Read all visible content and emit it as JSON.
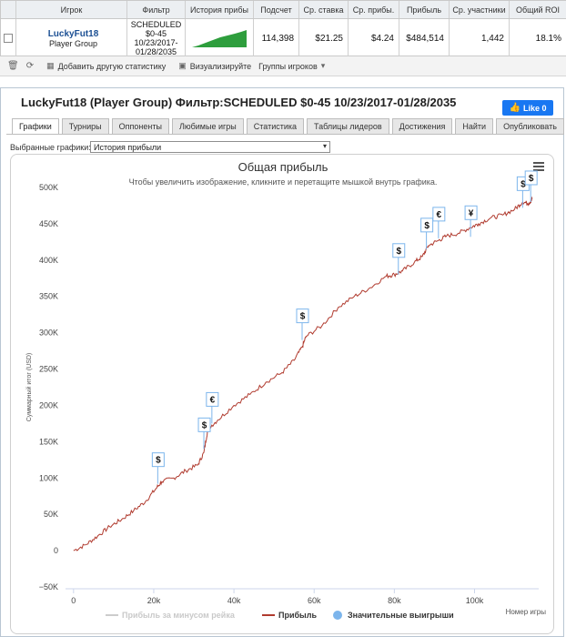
{
  "table": {
    "headers": [
      "Игрок",
      "Фильтр",
      "История прибы",
      "Подсчет",
      "Ср. ставка",
      "Ср. прибы.",
      "Прибыль",
      "Ср. участники",
      "Общий ROI"
    ],
    "player_name": "LuckyFut18",
    "player_group": "Player Group",
    "filter_lines": [
      "SCHEDULED",
      "$0-45",
      "10/23/2017-",
      "01/28/2035"
    ],
    "count": "114,398",
    "avg_stake": "$21.25",
    "avg_profit": "$4.24",
    "profit": "$484,514",
    "avg_entrants": "1,442",
    "roi": "18.1%"
  },
  "toolbar": {
    "add_stats": "Добавить другую статистику",
    "visualize": "Визуализируйте",
    "player_groups": "Группы игроков"
  },
  "panel": {
    "title": "LuckyFut18 (Player Group) Фильтр:SCHEDULED $0-45 10/23/2017-01/28/2035",
    "like": "Like 0",
    "tabs": [
      "Графики",
      "Турниры",
      "Оппоненты",
      "Любимые игры",
      "Статистика",
      "Таблицы лидеров",
      "Достижения",
      "Найти",
      "Опубликовать"
    ],
    "selected_label": "Выбранные графики:",
    "selected_value": "История прибыли"
  },
  "colors": {
    "profit_line": "#b03a2e",
    "rake_line": "#cccccc",
    "big_wins": "#7cb5ec",
    "accent": "#1b4f93"
  },
  "chart_data": {
    "type": "line",
    "title": "Общая прибыль",
    "subtitle": "Чтобы увеличить изображение, кликните и перетащите мышкой внутрь графика.",
    "xlabel": "Номер игры",
    "ylabel": "Суммарный итог (USD)",
    "xlim": [
      -2000,
      116000
    ],
    "ylim": [
      -50000,
      500000
    ],
    "x_ticks": [
      0,
      20000,
      40000,
      60000,
      80000,
      100000
    ],
    "x_tick_labels": [
      "0",
      "20k",
      "40k",
      "60k",
      "80k",
      "100k"
    ],
    "y_ticks": [
      -50000,
      0,
      50000,
      100000,
      150000,
      200000,
      250000,
      300000,
      350000,
      400000,
      450000,
      500000
    ],
    "y_tick_labels": [
      "−50K",
      "0",
      "50K",
      "100K",
      "150K",
      "200K",
      "250K",
      "300K",
      "350K",
      "400K",
      "450K",
      "500K"
    ],
    "series": [
      {
        "name": "Прибыль",
        "x": [
          0,
          3000,
          6000,
          9000,
          12000,
          15000,
          18000,
          20500,
          22000,
          25000,
          28000,
          31000,
          32500,
          33500,
          36000,
          40000,
          44000,
          48000,
          52000,
          55000,
          57000,
          58000,
          62000,
          66000,
          70000,
          74000,
          78000,
          80000,
          82000,
          85000,
          87000,
          88500,
          91000,
          93000,
          96000,
          99000,
          101000,
          104000,
          107000,
          110000,
          112000,
          113500,
          114398
        ],
        "y": [
          0,
          8000,
          20000,
          33000,
          43000,
          55000,
          68000,
          85000,
          95000,
          100000,
          110000,
          118000,
          135000,
          168000,
          180000,
          200000,
          215000,
          232000,
          245000,
          262000,
          280000,
          295000,
          310000,
          335000,
          350000,
          362000,
          378000,
          380000,
          385000,
          397000,
          405000,
          420000,
          427000,
          433000,
          437000,
          445000,
          450000,
          458000,
          462000,
          470000,
          480000,
          478000,
          484514
        ]
      },
      {
        "name": "Прибыль за минусом рейка",
        "x": [],
        "y": []
      }
    ],
    "big_wins": [
      {
        "x": 21000,
        "y": 92000,
        "label": "$"
      },
      {
        "x": 32500,
        "y": 140000,
        "label": "$"
      },
      {
        "x": 34500,
        "y": 175000,
        "label": "€"
      },
      {
        "x": 57000,
        "y": 290000,
        "label": "$"
      },
      {
        "x": 81000,
        "y": 380000,
        "label": "$"
      },
      {
        "x": 88000,
        "y": 415000,
        "label": "$"
      },
      {
        "x": 91000,
        "y": 430000,
        "label": "€"
      },
      {
        "x": 99000,
        "y": 432000,
        "label": "¥"
      },
      {
        "x": 112000,
        "y": 472000,
        "label": "$"
      },
      {
        "x": 114000,
        "y": 480000,
        "label": "$"
      }
    ],
    "legend": [
      "Прибыль за минусом рейка",
      "Прибыль",
      "Значительные выигрыши"
    ],
    "legend_position": "bottom",
    "grid": false
  }
}
